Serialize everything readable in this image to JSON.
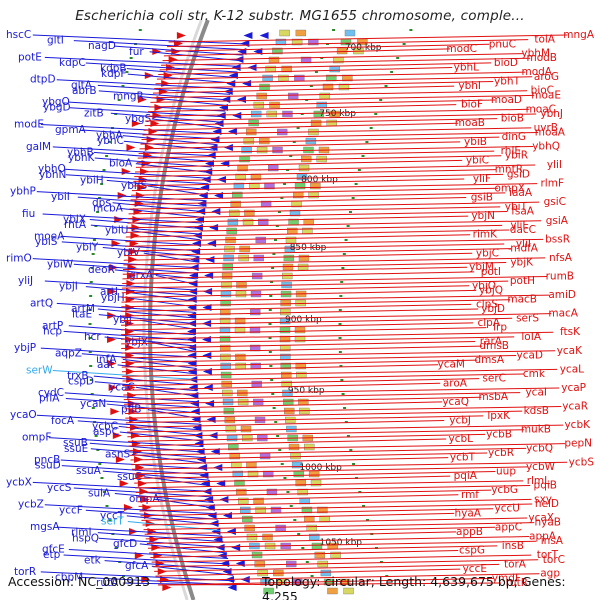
{
  "title": "Escherichia coli str. K-12 substr. MG1655 chromosome, comple...",
  "footer": {
    "accession": "Accession: NC_000913",
    "summary": "Topology: circular; Length: 4,639,675 bp; Genes: 4,255"
  },
  "colors": {
    "forward": "#e01010",
    "reverse": "#1a1ad8",
    "rna": "#33aaee",
    "backbone": "#8a8a8a",
    "axis_tick": "#2a8a2a"
  },
  "scale_labels": [
    "700 kbp",
    "750 kbp",
    "800 kbp",
    "850 kbp",
    "900 kbp",
    "950 kbp",
    "1000 kbp",
    "1050 kbp"
  ],
  "reverse_genes": [
    "hscC",
    "gltI",
    "nagD",
    "fur",
    "potE",
    "kdpC",
    "kdpB",
    "kdpF",
    "dtpD",
    "gltA",
    "abrB",
    "mngR",
    "ybgO",
    "ybgD",
    "zitB",
    "ybgS",
    "modE",
    "gpmA",
    "ybhA",
    "ybhC",
    "galM",
    "ybhB",
    "ybhK",
    "bioA",
    "ybhO",
    "ybhN",
    "ybiH",
    "ybhS",
    "ybhP",
    "ybiI",
    "dps",
    "mcbA",
    "fiu",
    "ybiX",
    "rhtA",
    "ybiU",
    "moeA",
    "ybiS",
    "ybiY",
    "ybiV",
    "rimO",
    "ybiW",
    "deoR",
    "grxA",
    "yliJ",
    "ybjI",
    "artI",
    "ybjH",
    "artQ",
    "artM",
    "ltaE",
    "ybjJ",
    "artP",
    "hcp",
    "hcr",
    "ybjX",
    "ybjP",
    "aqpZ",
    "infA",
    "aat",
    "serW",
    "trxB",
    "cspD",
    "ycaC",
    "cydC",
    "pflA",
    "ycaN",
    "pflB",
    "ycaO",
    "focA",
    "ycbC",
    "aspC",
    "ompF",
    "ssuB",
    "ssuE",
    "asnS",
    "pncB",
    "ssuD",
    "ssuA",
    "ssuC",
    "ycbX",
    "yccS",
    "sulA",
    "ompA",
    "ycbZ",
    "yccF",
    "yccT",
    "serT",
    "mgsA",
    "rlmI",
    "hspQ",
    "gfcD",
    "gfcE",
    "etp",
    "etk",
    "gfcA",
    "torR",
    "cbpM",
    "rutA"
  ],
  "forward_genes": [
    "mngA",
    "tolA",
    "pnuC",
    "modC",
    "ybhM",
    "modB",
    "bioD",
    "ybhL",
    "modA",
    "aroG",
    "ybhT",
    "ybhI",
    "bioC",
    "moaE",
    "moaD",
    "bioF",
    "moaC",
    "ybhJ",
    "bioB",
    "moaB",
    "uvrB",
    "moaA",
    "dinG",
    "ybiB",
    "ybhQ",
    "rhlE",
    "ybiR",
    "ybiC",
    "yliI",
    "mntR",
    "gsiD",
    "yliF",
    "rlmF",
    "ompX",
    "iaaA",
    "gsiB",
    "gsiC",
    "ybiT",
    "fsaA",
    "ybjN",
    "gsiA",
    "yliE",
    "dacC",
    "rimK",
    "bssR",
    "yliI",
    "mdfA",
    "ybjC",
    "nfsA",
    "ybjK",
    "ybjM",
    "potI",
    "rumB",
    "potH",
    "ybjO",
    "ybjQ",
    "amiD",
    "macB",
    "clpS",
    "ybjD",
    "macA",
    "serS",
    "clpA",
    "lrp",
    "ftsK",
    "loIA",
    "rarA",
    "dmsB",
    "ycaK",
    "ycaD",
    "dmsA",
    "ycaM",
    "ycaL",
    "cmk",
    "serC",
    "aroA",
    "ycaP",
    "ycaI",
    "msbA",
    "ycaQ",
    "ycaR",
    "kdsB",
    "lpxK",
    "ycbJ",
    "ycbK",
    "mukB",
    "ycbB",
    "ycbL",
    "pepN",
    "ycbQ",
    "ycbR",
    "ycbT",
    "ycbS",
    "ycbW",
    "uup",
    "pqiA",
    "rlmL",
    "pqiB",
    "ycbG",
    "rmf",
    "sxy",
    "helD",
    "yccU",
    "hyaA",
    "ycaX",
    "hyaB",
    "appC",
    "appB",
    "appA",
    "insA",
    "insB",
    "cspG",
    "torT",
    "torC",
    "torA",
    "yccE",
    "agp",
    "ymdF",
    "rutR"
  ]
}
